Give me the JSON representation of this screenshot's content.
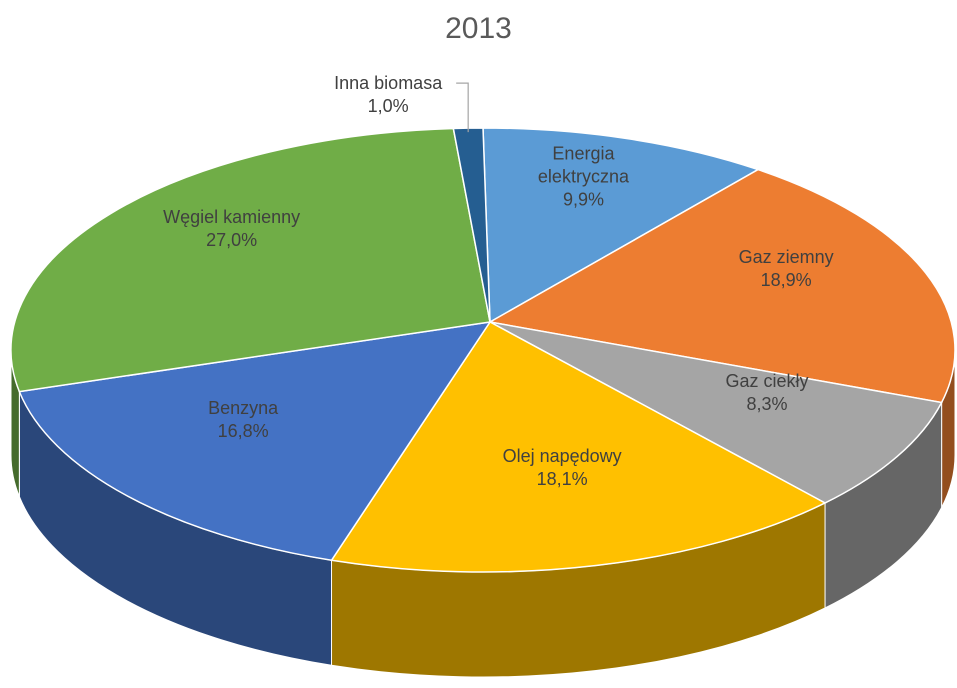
{
  "chart_data": {
    "type": "pie",
    "title": "2013",
    "categories": [
      "Energia elektryczna",
      "Gaz ziemny",
      "Gaz ciekły",
      "Olej napędowy",
      "Benzyna",
      "Węgiel kamienny",
      "Inna biomasa"
    ],
    "values": [
      9.9,
      18.9,
      8.3,
      18.1,
      16.8,
      27.0,
      1.0
    ],
    "value_labels": [
      "9,9%",
      "18,9%",
      "8,3%",
      "18,1%",
      "16,8%",
      "27,0%",
      "1,0%"
    ],
    "colors": [
      "#5b9bd5",
      "#ed7d31",
      "#a5a5a5",
      "#ffc000",
      "#4472c4",
      "#70ad47",
      "#255e91"
    ]
  }
}
